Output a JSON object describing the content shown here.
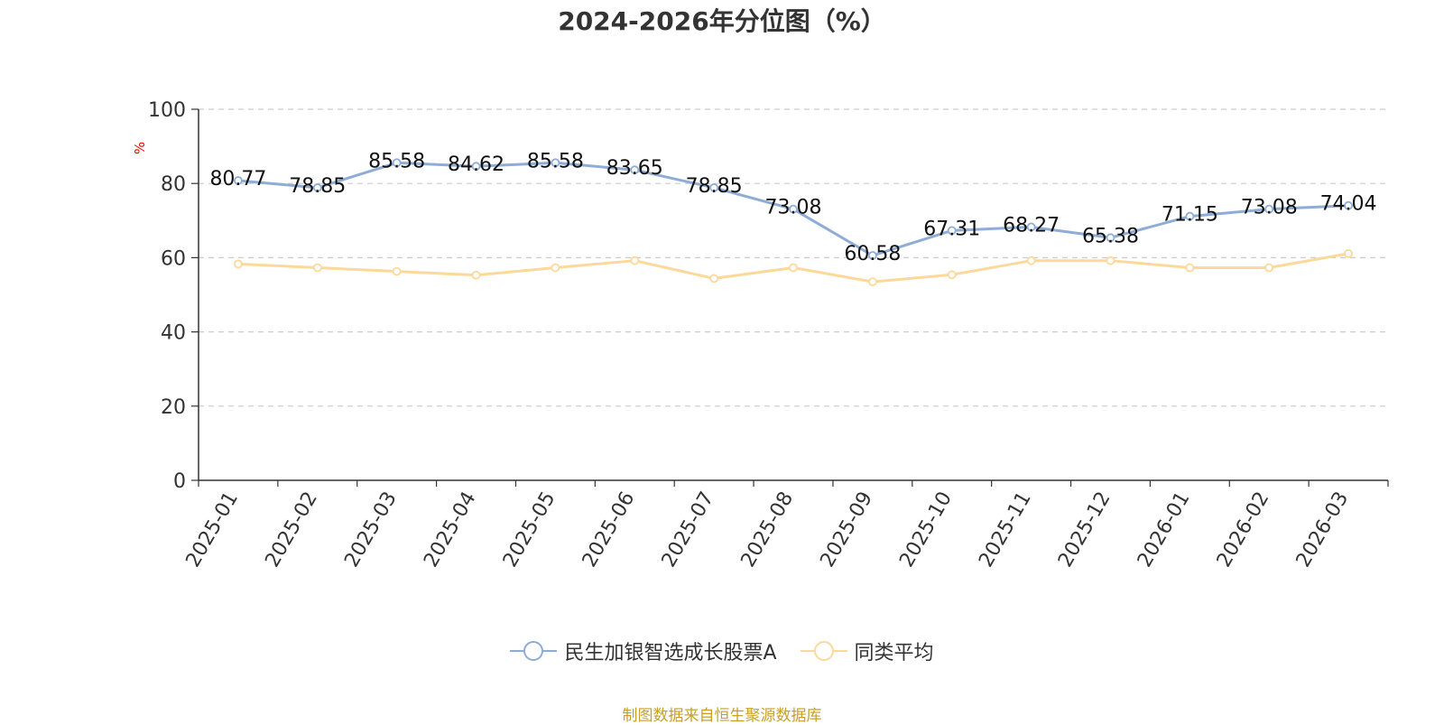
{
  "chart_data": {
    "type": "line",
    "title": "2024-2026年分位图（%）",
    "xlabel": "",
    "ylabel": "%",
    "ylim": [
      0,
      100
    ],
    "yticks": [
      0,
      20,
      40,
      60,
      80,
      100
    ],
    "grid": true,
    "legend_position": "bottom",
    "categories": [
      "2025-01",
      "2025-02",
      "2025-03",
      "2025-04",
      "2025-05",
      "2025-06",
      "2025-07",
      "2025-08",
      "2025-09",
      "2025-10",
      "2025-11",
      "2025-12",
      "2026-01",
      "2026-02",
      "2026-03"
    ],
    "series": [
      {
        "name": "民生加银智选成长股票A",
        "color": "#8eacd6",
        "values": [
          80.77,
          78.85,
          85.58,
          84.62,
          85.58,
          83.65,
          78.85,
          73.08,
          60.58,
          67.31,
          68.27,
          65.38,
          71.15,
          73.08,
          74.04
        ],
        "labels": [
          "80.77",
          "78.85",
          "85.58",
          "84.62",
          "85.58",
          "83.65",
          "78.85",
          "73.08",
          "60.58",
          "67.31",
          "68.27",
          "65.38",
          "71.15",
          "73.08",
          "74.04"
        ],
        "show_labels": true
      },
      {
        "name": "同类平均",
        "color": "#fcd99a",
        "values": [
          58.3,
          57.3,
          56.3,
          55.3,
          57.3,
          59.2,
          54.4,
          57.3,
          53.5,
          55.4,
          59.2,
          59.2,
          57.3,
          57.3,
          61.1
        ],
        "show_labels": false
      }
    ],
    "source_note": "制图数据来自恒生聚源数据库"
  }
}
